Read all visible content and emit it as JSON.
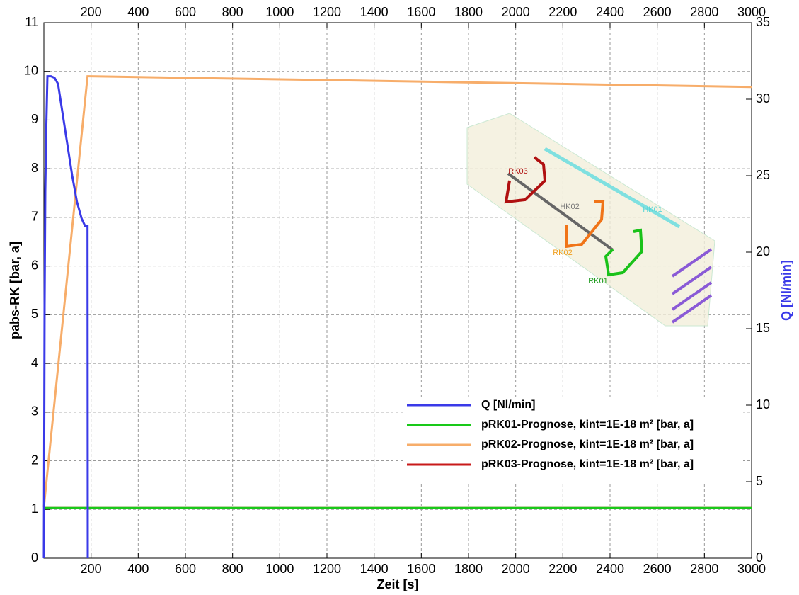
{
  "chart_data": {
    "type": "line",
    "xlabel": "Zeit [s]",
    "ylabel": "pabs-RK [bar, a]",
    "y2label": "Q [Nl/min]",
    "xlim": [
      0,
      3000
    ],
    "xticks": [
      200,
      400,
      600,
      800,
      1000,
      1200,
      1400,
      1600,
      1800,
      2000,
      2200,
      2400,
      2600,
      2800,
      3000
    ],
    "ylim": [
      0,
      11
    ],
    "yticks": [
      0,
      1,
      2,
      3,
      4,
      5,
      6,
      7,
      8,
      9,
      10,
      11
    ],
    "y2lim": [
      0,
      35
    ],
    "y2ticks": [
      0,
      5,
      10,
      15,
      20,
      25,
      30,
      35
    ],
    "grid": true,
    "legend": "lower right",
    "annotations": [
      "RK03",
      "HK02",
      "HK01",
      "RK02",
      "RK01"
    ],
    "series": [
      {
        "name": "Q [Nl/min]",
        "color": "#3a3ae8",
        "axis": "y2",
        "x": [
          0,
          3,
          6,
          10,
          15,
          20,
          30,
          45,
          60,
          80,
          100,
          120,
          140,
          160,
          175,
          185,
          186
        ],
        "values": [
          0,
          16.5,
          24,
          28,
          31.5,
          31.5,
          31.5,
          31.4,
          31,
          29,
          27,
          25,
          23.3,
          22.2,
          21.7,
          21.7,
          0
        ]
      },
      {
        "name": "pRK01-Prognose, kint=1E-18 m² [bar, a]",
        "color": "#19c919",
        "x": [
          0,
          3000
        ],
        "values": [
          1.03,
          1.03
        ]
      },
      {
        "name": "pRK02-Prognose, kint=1E-18 m² [bar, a]",
        "color": "#f7ad6a",
        "x": [
          0,
          185,
          3000
        ],
        "values": [
          1.05,
          9.9,
          9.68
        ]
      },
      {
        "name": "pRK03-Prognose, kint=1E-18 m² [bar, a]",
        "color": "#c81a1a",
        "x": [
          0,
          3000
        ],
        "values": [
          1.03,
          1.03
        ]
      }
    ]
  }
}
